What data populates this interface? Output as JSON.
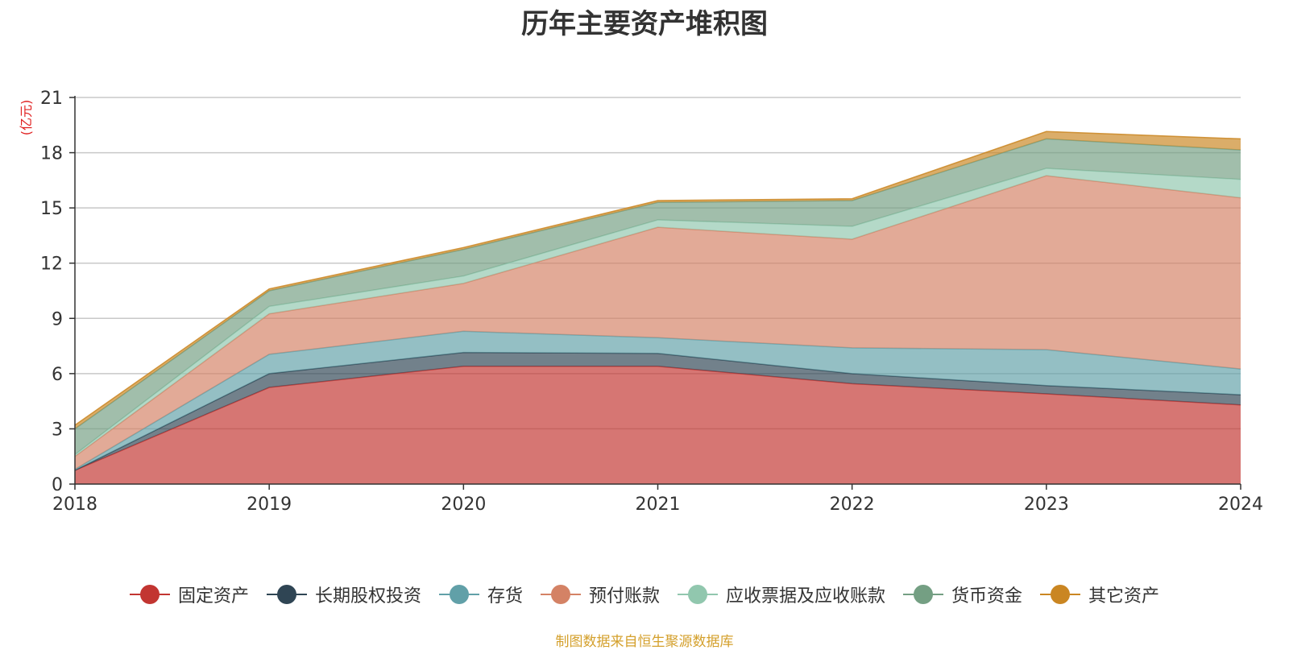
{
  "chart_data": {
    "type": "area",
    "stacked": true,
    "title": "历年主要资产堆积图",
    "ylabel": "(亿元)",
    "xlabel": "",
    "categories": [
      "2018",
      "2019",
      "2020",
      "2021",
      "2022",
      "2023",
      "2024"
    ],
    "ylim": [
      0,
      21
    ],
    "yticks": [
      0,
      3,
      6,
      9,
      12,
      15,
      18,
      21
    ],
    "grid": true,
    "legend_position": "bottom",
    "series": [
      {
        "name": "固定资产",
        "color": "#c23531",
        "values": [
          0.75,
          5.25,
          6.4,
          6.4,
          5.45,
          4.9,
          4.3
        ]
      },
      {
        "name": "长期股权投资",
        "color": "#2f4554",
        "values": [
          0.0,
          0.75,
          0.75,
          0.7,
          0.55,
          0.45,
          0.55
        ]
      },
      {
        "name": "存货",
        "color": "#61a0a8",
        "values": [
          0.05,
          1.05,
          1.15,
          0.85,
          1.4,
          1.95,
          1.4
        ]
      },
      {
        "name": "预付账款",
        "color": "#d48265",
        "values": [
          0.7,
          2.2,
          2.6,
          6.0,
          5.9,
          9.45,
          9.3
        ]
      },
      {
        "name": "应收票据及应收账款",
        "color": "#91c7ae",
        "values": [
          0.1,
          0.4,
          0.4,
          0.4,
          0.7,
          0.4,
          1.0
        ]
      },
      {
        "name": "货币资金",
        "color": "#749f83",
        "values": [
          1.4,
          0.85,
          1.45,
          0.95,
          1.4,
          1.6,
          1.6
        ]
      },
      {
        "name": "其它资产",
        "color": "#ca8622",
        "values": [
          0.2,
          0.1,
          0.1,
          0.1,
          0.1,
          0.4,
          0.6
        ]
      }
    ]
  },
  "source_note": "制图数据来自恒生聚源数据库"
}
